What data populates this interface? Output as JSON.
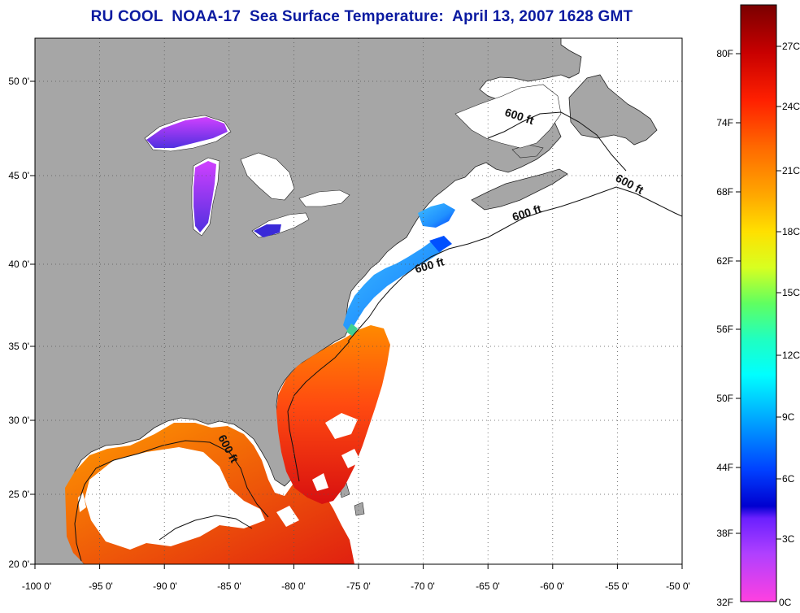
{
  "title": "RU COOL  NOAA-17  Sea Surface Temperature:  April 13, 2007 1628 GMT",
  "map": {
    "lon_range": [
      -100,
      -50
    ],
    "lat_range": [
      20,
      52
    ],
    "grid": true,
    "lon_labels": [
      "-100 0'",
      "-95 0'",
      "-90 0'",
      "-85 0'",
      "-80 0'",
      "-75 0'",
      "-70 0'",
      "-65 0'",
      "-60 0'",
      "-55 0'",
      "-50 0'"
    ],
    "lat_labels": [
      "20 0'",
      "25 0'",
      "30 0'",
      "35 0'",
      "40 0'",
      "45 0'",
      "50 0'"
    ],
    "contour_label": "600 ft",
    "land_color": "#a6a6a6",
    "ocean_nodata_color": "#ffffff"
  },
  "colorbar": {
    "fahrenheit_labels": [
      "80F",
      "74F",
      "68F",
      "62F",
      "56F",
      "50F",
      "44F",
      "38F",
      "32F"
    ],
    "celsius_labels": [
      "27C",
      "24C",
      "21C",
      "18C",
      "15C",
      "12C",
      "9C",
      "6C",
      "3C",
      "0C"
    ],
    "colors_top_to_bottom": [
      "#7a0000",
      "#c00000",
      "#ff1a00",
      "#ff6600",
      "#ffa000",
      "#ffd000",
      "#f0ff20",
      "#80ff40",
      "#20ffa0",
      "#00ffff",
      "#00b0ff",
      "#0050ff",
      "#0000e0",
      "#8000ff",
      "#d040ff",
      "#ff40e0"
    ]
  }
}
